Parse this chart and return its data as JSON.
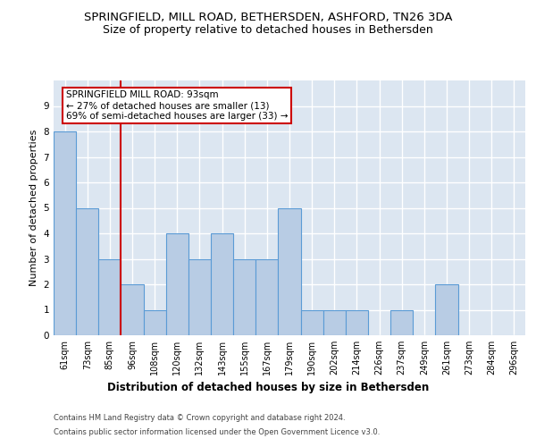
{
  "title": "SPRINGFIELD, MILL ROAD, BETHERSDEN, ASHFORD, TN26 3DA",
  "subtitle": "Size of property relative to detached houses in Bethersden",
  "xlabel": "Distribution of detached houses by size in Bethersden",
  "ylabel": "Number of detached properties",
  "categories": [
    "61sqm",
    "73sqm",
    "85sqm",
    "96sqm",
    "108sqm",
    "120sqm",
    "132sqm",
    "143sqm",
    "155sqm",
    "167sqm",
    "179sqm",
    "190sqm",
    "202sqm",
    "214sqm",
    "226sqm",
    "237sqm",
    "249sqm",
    "261sqm",
    "273sqm",
    "284sqm",
    "296sqm"
  ],
  "values": [
    8,
    5,
    3,
    2,
    1,
    4,
    3,
    4,
    3,
    3,
    5,
    1,
    1,
    1,
    0,
    1,
    0,
    2,
    0,
    0,
    0
  ],
  "bar_color": "#b8cce4",
  "bar_edge_color": "#5b9bd5",
  "vline_x_index": 2.5,
  "highlight_label_line1": "SPRINGFIELD MILL ROAD: 93sqm",
  "highlight_label_line2": "← 27% of detached houses are smaller (13)",
  "highlight_label_line3": "69% of semi-detached houses are larger (33) →",
  "annotation_box_color": "#ffffff",
  "annotation_box_edge": "#cc0000",
  "vline_color": "#cc0000",
  "ylim": [
    0,
    10
  ],
  "yticks": [
    0,
    1,
    2,
    3,
    4,
    5,
    6,
    7,
    8,
    9,
    10
  ],
  "background_color": "#dce6f1",
  "grid_color": "#ffffff",
  "footer1": "Contains HM Land Registry data © Crown copyright and database right 2024.",
  "footer2": "Contains public sector information licensed under the Open Government Licence v3.0.",
  "title_fontsize": 9.5,
  "subtitle_fontsize": 9,
  "tick_fontsize": 7,
  "ylabel_fontsize": 8,
  "xlabel_fontsize": 8.5,
  "annotation_fontsize": 7.5,
  "footer_fontsize": 6
}
